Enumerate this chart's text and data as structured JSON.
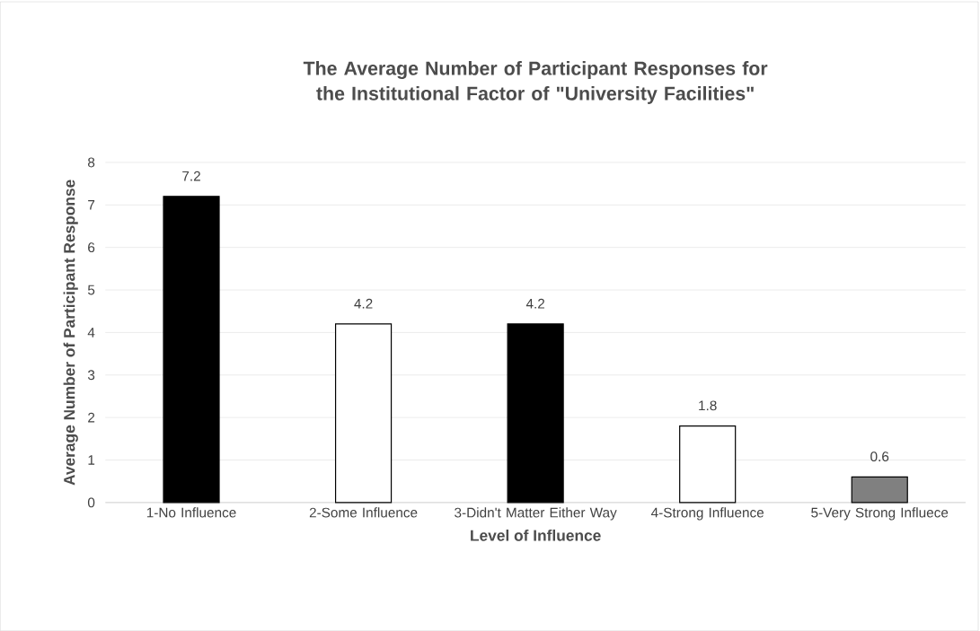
{
  "chart_data": {
    "type": "bar",
    "title": "The Average Number of Participant Responses for the Institutional Factor of \"University Facilities\"",
    "xlabel": "Level of Influence",
    "ylabel": "Average Number of Participant Response",
    "categories": [
      "1-No Influence",
      "2-Some Influence",
      "3-Didn't Matter Either Way",
      "4-Strong Influence",
      "5-Very Strong Influece"
    ],
    "values": [
      7.2,
      4.2,
      4.2,
      1.8,
      0.6
    ],
    "colors": [
      "#000000",
      "#ffffff",
      "#000000",
      "#ffffff",
      "#808080"
    ],
    "ylim": [
      0,
      8
    ],
    "yticks": [
      0,
      1,
      2,
      3,
      4,
      5,
      6,
      7,
      8
    ],
    "grid": "y",
    "data_labels": true
  }
}
